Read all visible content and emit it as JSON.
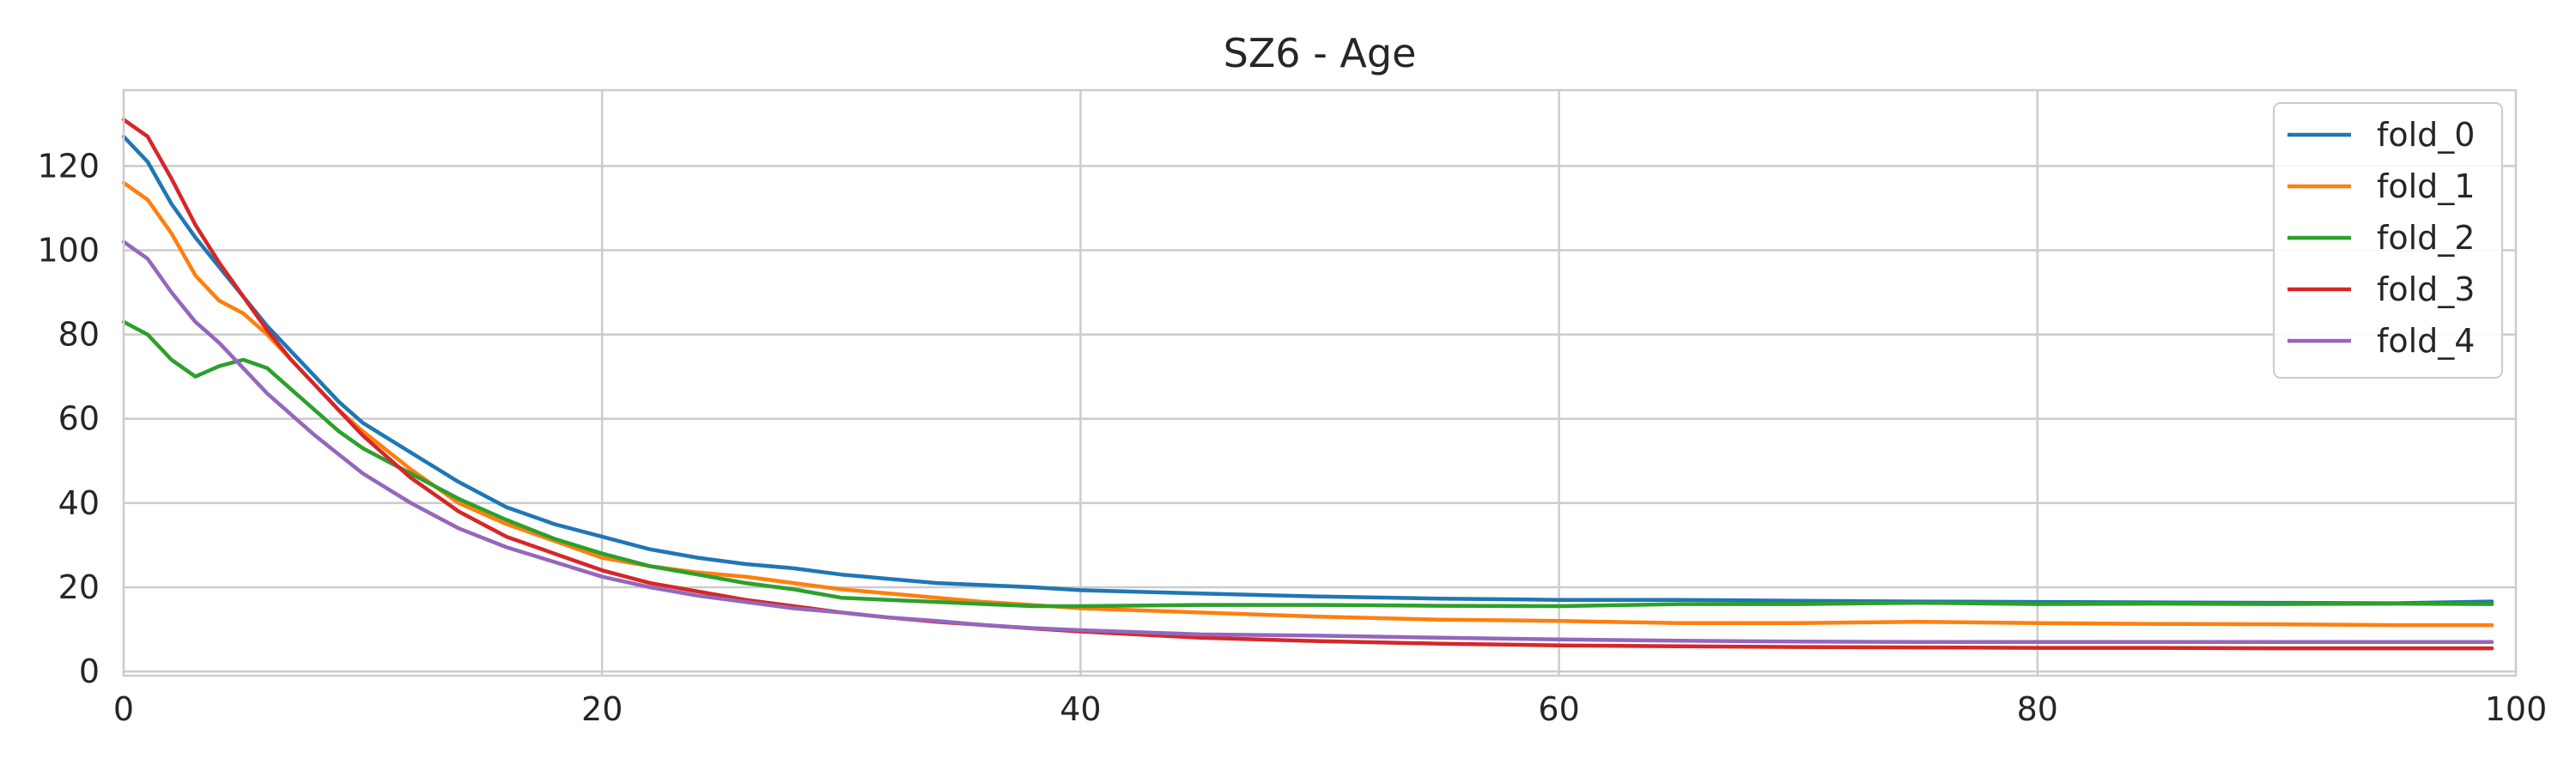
{
  "chart_data": {
    "type": "line",
    "title": "SZ6 - Age",
    "xlabel": "",
    "ylabel": "",
    "xlim": [
      0,
      100
    ],
    "ylim": [
      -1,
      138
    ],
    "xticks": [
      0,
      20,
      40,
      60,
      80,
      100
    ],
    "yticks": [
      0,
      20,
      40,
      60,
      80,
      100,
      120
    ],
    "grid": true,
    "legend_position": "top-right",
    "series": [
      {
        "name": "fold_0",
        "color": "#1f77b4",
        "x": [
          0,
          1,
          2,
          3,
          4,
          5,
          6,
          7,
          8,
          9,
          10,
          12,
          14,
          16,
          18,
          20,
          22,
          24,
          26,
          28,
          30,
          32,
          34,
          36,
          38,
          40,
          45,
          50,
          55,
          60,
          65,
          70,
          75,
          80,
          85,
          90,
          95,
          99
        ],
        "y": [
          127,
          121,
          111,
          103,
          96,
          89,
          82,
          76,
          70,
          64,
          59,
          52,
          45,
          39,
          35,
          32,
          29,
          27,
          25.5,
          24.5,
          23,
          22,
          21,
          20.5,
          20,
          19.3,
          18.5,
          17.8,
          17.3,
          17,
          17,
          16.8,
          16.6,
          16.5,
          16.4,
          16.3,
          16.2,
          16.6
        ]
      },
      {
        "name": "fold_1",
        "color": "#ff7f0e",
        "x": [
          0,
          1,
          2,
          3,
          4,
          5,
          6,
          7,
          8,
          9,
          10,
          12,
          14,
          16,
          18,
          20,
          22,
          24,
          26,
          28,
          30,
          32,
          34,
          36,
          38,
          40,
          45,
          50,
          55,
          60,
          65,
          70,
          75,
          80,
          85,
          90,
          95,
          99
        ],
        "y": [
          116,
          112,
          104,
          94,
          88,
          85,
          80,
          74,
          68,
          62,
          57,
          48,
          40,
          35,
          31,
          27,
          25,
          23.5,
          22.5,
          21,
          19.5,
          18.5,
          17.5,
          16.5,
          15.8,
          15,
          14,
          13,
          12.3,
          12,
          11.5,
          11.5,
          11.8,
          11.5,
          11.3,
          11.2,
          11,
          11
        ]
      },
      {
        "name": "fold_2",
        "color": "#2ca02c",
        "x": [
          0,
          1,
          2,
          3,
          4,
          5,
          6,
          7,
          8,
          9,
          10,
          12,
          14,
          16,
          18,
          20,
          22,
          24,
          26,
          28,
          30,
          32,
          34,
          36,
          38,
          40,
          45,
          50,
          55,
          60,
          65,
          70,
          75,
          80,
          85,
          90,
          95,
          99
        ],
        "y": [
          83,
          80,
          74,
          70,
          72.5,
          74,
          72,
          67,
          62,
          57,
          53,
          47,
          41,
          36,
          31.5,
          28,
          25,
          23,
          21,
          19.5,
          17.5,
          17,
          16.5,
          16,
          15.5,
          15.5,
          15.8,
          15.8,
          15.6,
          15.5,
          16,
          16,
          16.3,
          16,
          16.1,
          16,
          16.1,
          16
        ]
      },
      {
        "name": "fold_3",
        "color": "#d62728",
        "x": [
          0,
          1,
          2,
          3,
          4,
          5,
          6,
          7,
          8,
          9,
          10,
          12,
          14,
          16,
          18,
          20,
          22,
          24,
          26,
          28,
          30,
          32,
          34,
          36,
          38,
          40,
          45,
          50,
          55,
          60,
          65,
          70,
          75,
          80,
          85,
          90,
          95,
          99
        ],
        "y": [
          131,
          127,
          117,
          106,
          97,
          89,
          81,
          74,
          68,
          62,
          56,
          46,
          38,
          32,
          28,
          24,
          21,
          19,
          17,
          15.5,
          14,
          12.8,
          11.8,
          11,
          10.2,
          9.5,
          8,
          7.2,
          6.6,
          6.2,
          6,
          5.8,
          5.7,
          5.6,
          5.6,
          5.5,
          5.5,
          5.5
        ]
      },
      {
        "name": "fold_4",
        "color": "#9467bd",
        "x": [
          0,
          1,
          2,
          3,
          4,
          5,
          6,
          7,
          8,
          9,
          10,
          12,
          14,
          16,
          18,
          20,
          22,
          24,
          26,
          28,
          30,
          32,
          34,
          36,
          38,
          40,
          45,
          50,
          55,
          60,
          65,
          70,
          75,
          80,
          85,
          90,
          95,
          99
        ],
        "y": [
          102,
          98,
          90,
          83,
          78,
          72,
          66,
          61,
          56,
          51.5,
          47,
          40,
          34,
          29.5,
          26,
          22.5,
          20,
          18,
          16.5,
          15,
          14,
          12.8,
          12,
          11,
          10.3,
          9.8,
          8.8,
          8.5,
          8,
          7.6,
          7.3,
          7.1,
          7,
          7,
          7,
          7,
          7,
          7
        ]
      }
    ]
  }
}
